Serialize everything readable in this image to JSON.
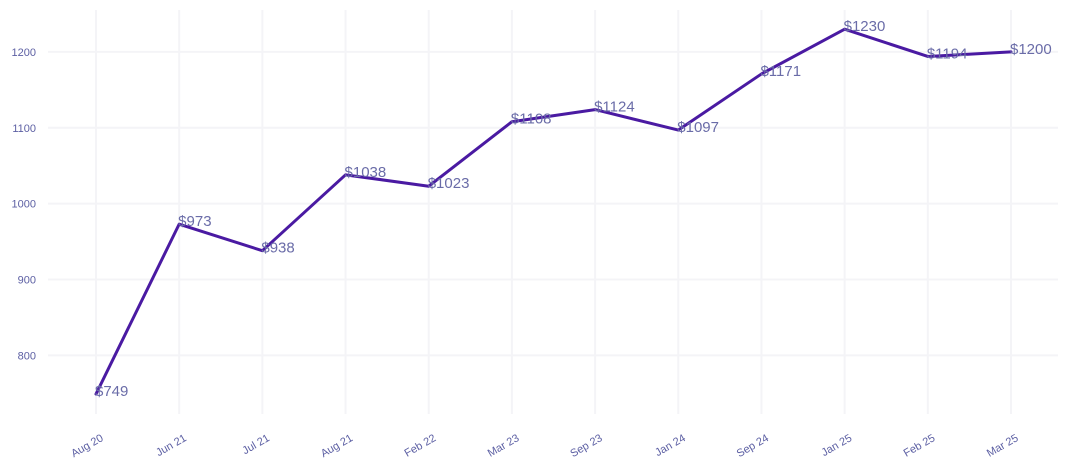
{
  "colors": {
    "line": "#4a1aa2",
    "tick_text": "#5c5fa3",
    "label_text": "#6a6ca8",
    "grid": "#f4f4f7"
  },
  "chart_data": {
    "type": "line",
    "title": "",
    "xlabel": "",
    "ylabel": "",
    "categories": [
      "Aug 20",
      "Jun 21",
      "Jul 21",
      "Aug 21",
      "Feb 22",
      "Mar 23",
      "Sep 23",
      "Jan 24",
      "Sep 24",
      "Jan 25",
      "Feb 25",
      "Mar 25"
    ],
    "values": [
      749,
      973,
      938,
      1038,
      1023,
      1108,
      1124,
      1097,
      1171,
      1230,
      1194,
      1200
    ],
    "data_labels": [
      "$749",
      "$973",
      "$938",
      "$1038",
      "$1023",
      "$1108",
      "$1124",
      "$1097",
      "$1171",
      "$1230",
      "$1194",
      "$1200"
    ],
    "y_ticks": [
      800,
      900,
      1000,
      1100,
      1200
    ],
    "ylim": [
      728,
      1250
    ],
    "grid": true,
    "legend": "none"
  }
}
